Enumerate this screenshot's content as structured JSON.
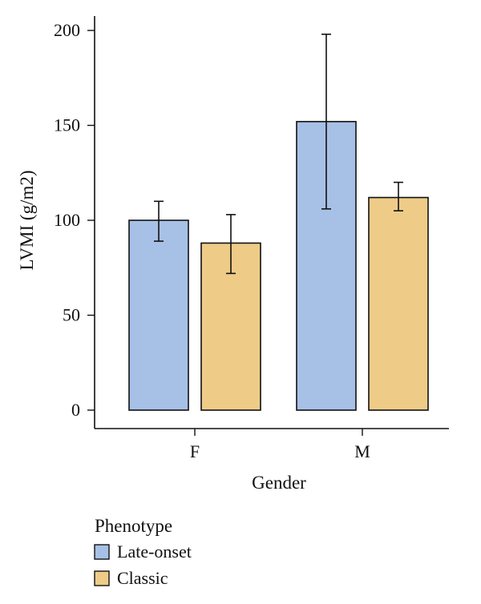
{
  "chart_data": {
    "type": "bar",
    "xlabel": "Gender",
    "ylabel": "LVMI (g/m2)",
    "categories": [
      "F",
      "M"
    ],
    "ylim": [
      0,
      200
    ],
    "yticks": [
      0,
      50,
      100,
      150,
      200
    ],
    "series": [
      {
        "name": "Late-onset",
        "color": "#A7C1E6",
        "values": [
          100,
          152
        ],
        "error_low": [
          89,
          106
        ],
        "error_high": [
          110,
          198
        ]
      },
      {
        "name": "Classic",
        "color": "#EECC88",
        "values": [
          88,
          112
        ],
        "error_low": [
          72,
          105
        ],
        "error_high": [
          103,
          120
        ]
      }
    ],
    "legend": {
      "title": "Phenotype",
      "position": "bottom-left"
    },
    "grid": false
  }
}
